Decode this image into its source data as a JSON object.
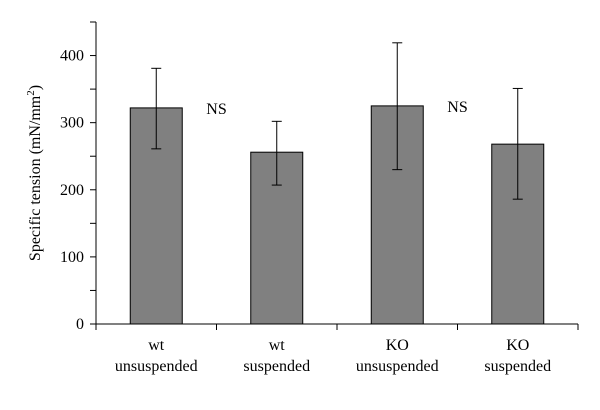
{
  "chart_data": {
    "type": "bar",
    "title": "",
    "xlabel": "",
    "ylabel": "Specific tension (mN/mm",
    "ylabel_superscript": "2",
    "ylabel_suffix": ")",
    "ylim": [
      0,
      450
    ],
    "yticks": [
      0,
      100,
      200,
      300,
      400
    ],
    "categories": [
      [
        "wt",
        "unsuspended"
      ],
      [
        "wt",
        "suspended"
      ],
      [
        "KO",
        "unsuspended"
      ],
      [
        "KO",
        "suspended"
      ]
    ],
    "values": [
      322,
      256,
      325,
      268
    ],
    "error_low": [
      261,
      207,
      230,
      186
    ],
    "error_high": [
      381,
      302,
      419,
      351
    ],
    "annotations": [
      "NS",
      "NS"
    ],
    "bar_color": "#808080",
    "grid": false,
    "legend": "none"
  }
}
